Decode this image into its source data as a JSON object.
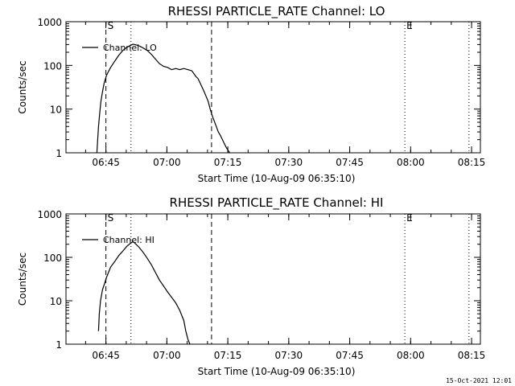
{
  "chart_data": [
    {
      "type": "line",
      "title": "RHESSI PARTICLE_RATE Channel: LO",
      "xlabel": "Start Time (10-Aug-09 06:35:10)",
      "ylabel": "Counts/sec",
      "yscale": "log",
      "ylim": [
        1,
        1000
      ],
      "y_ticks": [
        1,
        10,
        100,
        1000
      ],
      "y_tick_labels": [
        "1",
        "10",
        "100",
        "1000"
      ],
      "x_unit": "minutes after 06:35:10",
      "xlim": [
        0,
        102
      ],
      "x_ticks": [
        9.83,
        24.83,
        39.83,
        54.83,
        69.83,
        84.83,
        99.83
      ],
      "x_tick_labels": [
        "06:45",
        "07:00",
        "07:15",
        "07:30",
        "07:45",
        "08:00",
        "08:15"
      ],
      "series": [
        {
          "name": "Channel: LO",
          "x": [
            7.6,
            7.8,
            8.0,
            8.3,
            8.6,
            9.0,
            9.4,
            10.0,
            11.0,
            12.0,
            13.0,
            14.0,
            15.0,
            16.0,
            16.5,
            17.0,
            18.0,
            19.0,
            20.0,
            21.0,
            22.0,
            23.0,
            24.0,
            25.0,
            26.0,
            27.0,
            28.0,
            29.0,
            30.0,
            31.0,
            32.0,
            32.5,
            33.0,
            34.0,
            35.0,
            35.5,
            36.0,
            37.0,
            37.5,
            38.0,
            38.5,
            39.0,
            39.5,
            40.0,
            40.3
          ],
          "y": [
            1,
            2,
            4,
            8,
            15,
            25,
            40,
            60,
            90,
            125,
            170,
            220,
            260,
            290,
            305,
            300,
            280,
            250,
            220,
            180,
            140,
            110,
            95,
            90,
            80,
            85,
            80,
            85,
            80,
            75,
            55,
            50,
            40,
            25,
            15,
            10,
            7,
            4,
            3,
            2.5,
            2,
            1.6,
            1.3,
            1.1,
            1
          ]
        }
      ],
      "vlines": [
        {
          "x": 9.83,
          "style": "dashed",
          "label": "S"
        },
        {
          "x": 16.0,
          "style": "dotted",
          "label": ""
        },
        {
          "x": 35.83,
          "style": "dashed",
          "label": ""
        },
        {
          "x": 83.4,
          "style": "dotted",
          "label": "E"
        },
        {
          "x": 99.2,
          "style": "dotted",
          "label": ""
        }
      ],
      "legend": {
        "label": "Channel: LO",
        "position": "top-left"
      }
    },
    {
      "type": "line",
      "title": "RHESSI PARTICLE_RATE Channel: HI",
      "xlabel": "Start Time (10-Aug-09 06:35:10)",
      "ylabel": "Counts/sec",
      "yscale": "log",
      "ylim": [
        1,
        1000
      ],
      "y_ticks": [
        1,
        10,
        100,
        1000
      ],
      "y_tick_labels": [
        "1",
        "10",
        "100",
        "1000"
      ],
      "x_unit": "minutes after 06:35:10",
      "xlim": [
        0,
        102
      ],
      "x_ticks": [
        9.83,
        24.83,
        39.83,
        54.83,
        69.83,
        84.83,
        99.83
      ],
      "x_tick_labels": [
        "06:45",
        "07:00",
        "07:15",
        "07:30",
        "07:45",
        "08:00",
        "08:15"
      ],
      "series": [
        {
          "name": "Channel: HI",
          "x": [
            8.0,
            8.2,
            8.5,
            9.0,
            9.5,
            10.0,
            11.0,
            12.0,
            13.0,
            14.0,
            15.0,
            16.0,
            16.5,
            17.0,
            18.0,
            19.0,
            20.0,
            21.0,
            22.0,
            23.0,
            24.0,
            25.0,
            26.0,
            27.0,
            28.0,
            29.0,
            29.5,
            30.0,
            30.5
          ],
          "y": [
            2,
            5,
            10,
            18,
            25,
            35,
            60,
            80,
            110,
            140,
            180,
            215,
            230,
            210,
            170,
            130,
            95,
            68,
            45,
            30,
            22,
            16,
            12,
            9,
            6,
            3.5,
            2,
            1.3,
            1
          ]
        }
      ],
      "vlines": [
        {
          "x": 9.83,
          "style": "dashed",
          "label": "S"
        },
        {
          "x": 16.0,
          "style": "dotted",
          "label": ""
        },
        {
          "x": 35.83,
          "style": "dashed",
          "label": ""
        },
        {
          "x": 83.4,
          "style": "dotted",
          "label": "E"
        },
        {
          "x": 99.2,
          "style": "dotted",
          "label": ""
        }
      ],
      "legend": {
        "label": "Channel: HI",
        "position": "top-left"
      }
    }
  ],
  "footer": {
    "timestamp": "15-Oct-2021 12:01"
  }
}
